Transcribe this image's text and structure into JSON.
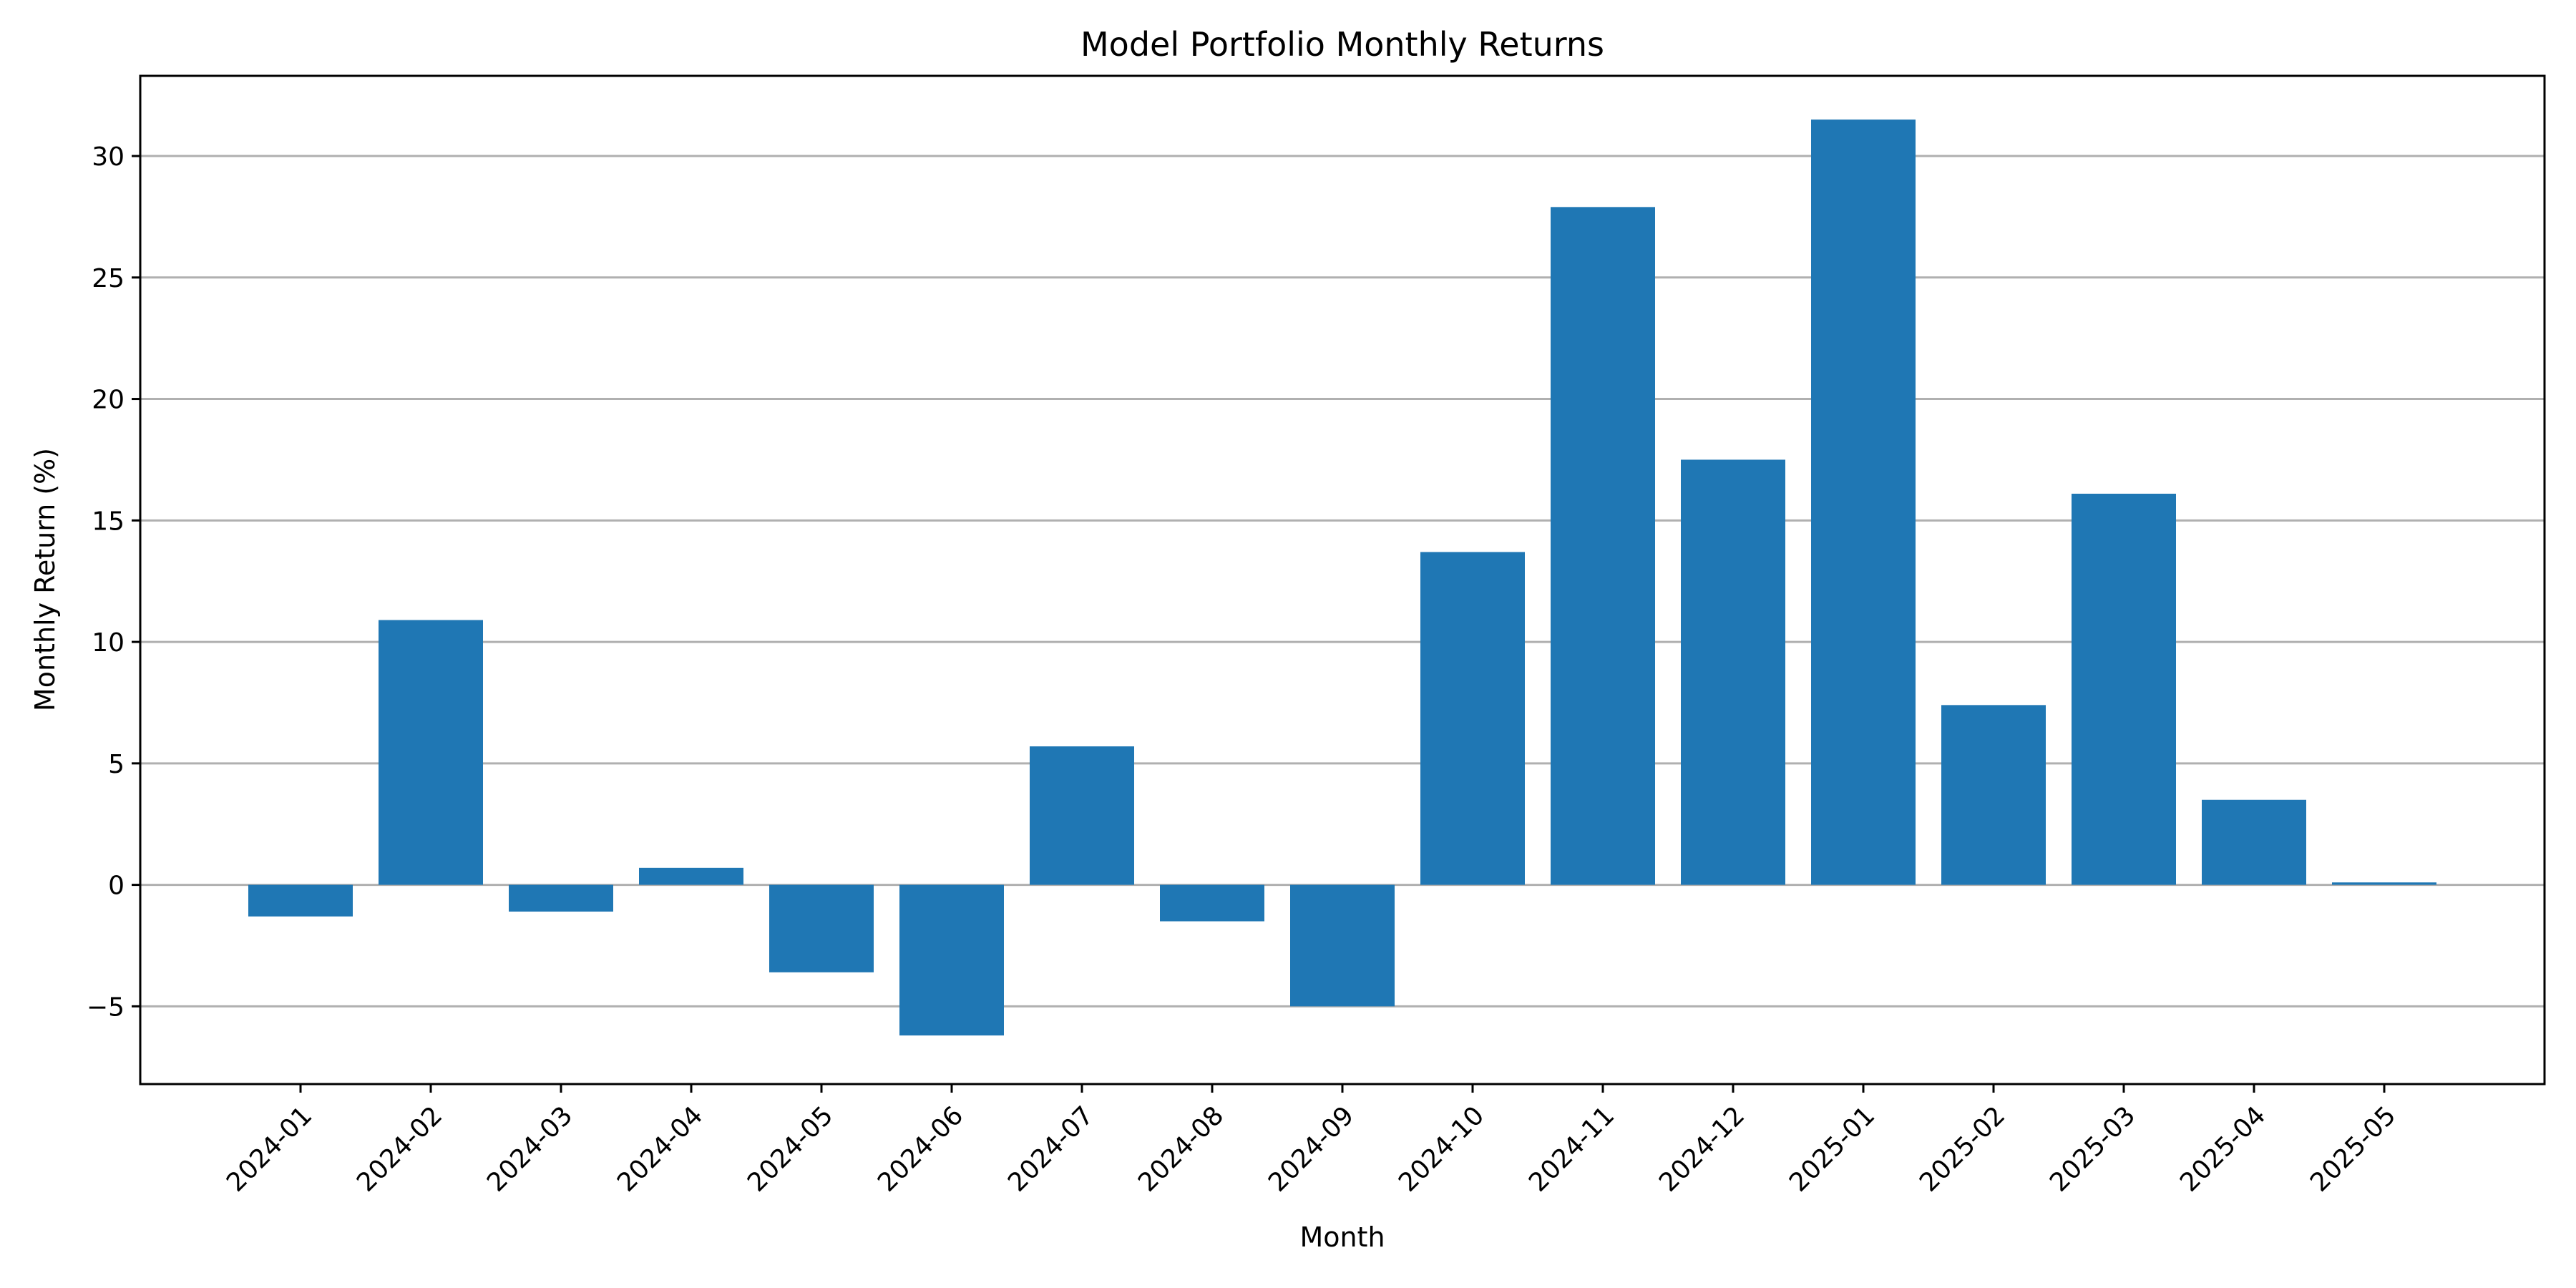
{
  "chart_data": {
    "type": "bar",
    "title": "Model Portfolio Monthly Returns",
    "xlabel": "Month",
    "ylabel": "Monthly Return (%)",
    "categories": [
      "2024-01",
      "2024-02",
      "2024-03",
      "2024-04",
      "2024-05",
      "2024-06",
      "2024-07",
      "2024-08",
      "2024-09",
      "2024-10",
      "2024-11",
      "2024-12",
      "2025-01",
      "2025-02",
      "2025-03",
      "2025-04",
      "2025-05"
    ],
    "values": [
      -1.3,
      10.9,
      -1.1,
      0.7,
      -3.6,
      -6.2,
      5.7,
      -1.5,
      -5.0,
      13.7,
      27.9,
      17.5,
      31.5,
      7.4,
      16.1,
      3.5,
      0.1
    ],
    "ylim": [
      -8.2,
      33.3
    ],
    "yticks": [
      -5,
      0,
      5,
      10,
      15,
      20,
      25,
      30
    ],
    "ytick_labels": [
      "−5",
      "0",
      "5",
      "10",
      "15",
      "20",
      "25",
      "30"
    ],
    "grid": "y",
    "legend": "none",
    "bar_color": "#1f77b4"
  }
}
